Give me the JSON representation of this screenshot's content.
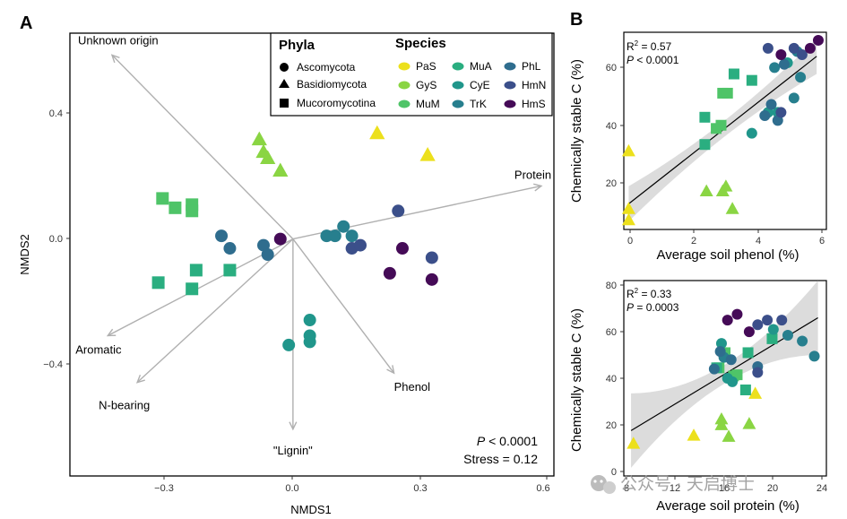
{
  "colors": {
    "PaS": "#ECE01C",
    "GyS": "#8AD543",
    "MuM": "#4FC468",
    "MuA": "#2AAE80",
    "CyE": "#20968B",
    "TrK": "#277F8E",
    "PhL": "#2F6D8E",
    "HmN": "#3B4F8A",
    "HmS": "#450B57",
    "vector": "#b0b0b0",
    "ribbon": "#d6d6d6"
  },
  "panel_a": {
    "label": "A",
    "xlabel": "NMDS1",
    "ylabel": "NMDS2",
    "xticks": [
      "−0.3",
      "0.0",
      "0.3",
      "0.6"
    ],
    "yticks": [
      "0.4",
      "0.0",
      "−0.4"
    ],
    "p_text": "< 0.0001",
    "stress_text": "Stress = 0.12"
  },
  "panel_b": {
    "label": "B",
    "top": {
      "xlabel": "Average soil phenol (%)",
      "ylabel": "Chemically stable C (%)",
      "xticks": [
        "0",
        "2",
        "4",
        "6"
      ],
      "yticks": [
        "20",
        "40",
        "60"
      ],
      "r2": "= 0.57",
      "p": "< 0.0001"
    },
    "bottom": {
      "xlabel": "Average soil protein (%)",
      "ylabel": "Chemically stable C (%)",
      "xticks": [
        "8",
        "12",
        "16",
        "20",
        "24"
      ],
      "yticks": [
        "0",
        "20",
        "40",
        "60",
        "80"
      ],
      "r2": "= 0.33",
      "p": "= 0.0003"
    }
  },
  "legend": {
    "phyla_title": "Phyla",
    "species_title": "Species",
    "phyla": [
      {
        "name": "Ascomycota",
        "shape": "circle"
      },
      {
        "name": "Basidiomycota",
        "shape": "triangle"
      },
      {
        "name": "Mucoromycotina",
        "shape": "square"
      }
    ],
    "species": [
      "PaS",
      "GyS",
      "MuM",
      "MuA",
      "CyE",
      "TrK",
      "PhL",
      "HmN",
      "HmS"
    ]
  },
  "watermark": "公众号 · 天启博士",
  "chart_data": [
    {
      "type": "scatter",
      "title": "",
      "xlabel": "NMDS1",
      "ylabel": "NMDS2",
      "xlim": [
        -0.53,
        0.62
      ],
      "ylim": [
        -0.76,
        0.66
      ],
      "grid": false,
      "legend_position": "top-right",
      "vectors": [
        {
          "label": "Unknown origin",
          "x": -0.43,
          "y": 0.59
        },
        {
          "label": "Protein",
          "x": 0.59,
          "y": 0.17
        },
        {
          "label": "Aromatic",
          "x": -0.44,
          "y": -0.31
        },
        {
          "label": "N-bearing",
          "x": -0.37,
          "y": -0.46
        },
        {
          "label": "Phenol",
          "x": 0.24,
          "y": -0.43
        },
        {
          "label": "\"Lignin\"",
          "x": 0.0,
          "y": -0.61
        }
      ],
      "points": [
        {
          "species": "PaS",
          "shape": "triangle",
          "x": 0.2,
          "y": 0.34
        },
        {
          "species": "PaS",
          "shape": "triangle",
          "x": 0.32,
          "y": 0.27
        },
        {
          "species": "GyS",
          "shape": "triangle",
          "x": -0.08,
          "y": 0.32
        },
        {
          "species": "GyS",
          "shape": "triangle",
          "x": -0.07,
          "y": 0.28
        },
        {
          "species": "GyS",
          "shape": "triangle",
          "x": -0.06,
          "y": 0.26
        },
        {
          "species": "GyS",
          "shape": "triangle",
          "x": -0.03,
          "y": 0.22
        },
        {
          "species": "MuM",
          "shape": "square",
          "x": -0.31,
          "y": 0.13
        },
        {
          "species": "MuM",
          "shape": "square",
          "x": -0.28,
          "y": 0.1
        },
        {
          "species": "MuM",
          "shape": "square",
          "x": -0.24,
          "y": 0.11
        },
        {
          "species": "MuM",
          "shape": "square",
          "x": -0.24,
          "y": 0.09
        },
        {
          "species": "MuA",
          "shape": "square",
          "x": -0.32,
          "y": -0.14
        },
        {
          "species": "MuA",
          "shape": "square",
          "x": -0.24,
          "y": -0.16
        },
        {
          "species": "MuA",
          "shape": "square",
          "x": -0.23,
          "y": -0.1
        },
        {
          "species": "MuA",
          "shape": "square",
          "x": -0.15,
          "y": -0.1
        },
        {
          "species": "CyE",
          "shape": "circle",
          "x": -0.01,
          "y": -0.34
        },
        {
          "species": "CyE",
          "shape": "circle",
          "x": 0.04,
          "y": -0.26
        },
        {
          "species": "CyE",
          "shape": "circle",
          "x": 0.04,
          "y": -0.31
        },
        {
          "species": "CyE",
          "shape": "circle",
          "x": 0.04,
          "y": -0.33
        },
        {
          "species": "TrK",
          "shape": "circle",
          "x": 0.08,
          "y": 0.01
        },
        {
          "species": "TrK",
          "shape": "circle",
          "x": 0.1,
          "y": 0.01
        },
        {
          "species": "TrK",
          "shape": "circle",
          "x": 0.12,
          "y": 0.04
        },
        {
          "species": "TrK",
          "shape": "circle",
          "x": 0.14,
          "y": 0.01
        },
        {
          "species": "PhL",
          "shape": "circle",
          "x": -0.17,
          "y": 0.01
        },
        {
          "species": "PhL",
          "shape": "circle",
          "x": -0.15,
          "y": -0.03
        },
        {
          "species": "PhL",
          "shape": "circle",
          "x": -0.07,
          "y": -0.02
        },
        {
          "species": "PhL",
          "shape": "circle",
          "x": -0.06,
          "y": -0.05
        },
        {
          "species": "HmN",
          "shape": "circle",
          "x": 0.14,
          "y": -0.03
        },
        {
          "species": "HmN",
          "shape": "circle",
          "x": 0.16,
          "y": -0.02
        },
        {
          "species": "HmN",
          "shape": "circle",
          "x": 0.25,
          "y": 0.09
        },
        {
          "species": "HmN",
          "shape": "circle",
          "x": 0.33,
          "y": -0.06
        },
        {
          "species": "HmS",
          "shape": "circle",
          "x": -0.03,
          "y": 0.0
        },
        {
          "species": "HmS",
          "shape": "circle",
          "x": 0.23,
          "y": -0.11
        },
        {
          "species": "HmS",
          "shape": "circle",
          "x": 0.26,
          "y": -0.03
        },
        {
          "species": "HmS",
          "shape": "circle",
          "x": 0.33,
          "y": -0.13
        }
      ]
    },
    {
      "type": "scatter",
      "title": "",
      "xlabel": "Average soil phenol (%)",
      "ylabel": "Chemically stable C (%)",
      "xlim": [
        -0.15,
        6.1
      ],
      "ylim": [
        8.5,
        70
      ],
      "fit_line": {
        "x": [
          0,
          5.8
        ],
        "y": [
          16.5,
          62.5
        ]
      },
      "r2": 0.57,
      "p": "< 0.0001",
      "points": [
        {
          "species": "PaS",
          "shape": "triangle",
          "x": 0.0,
          "y": 33
        },
        {
          "species": "PaS",
          "shape": "triangle",
          "x": 0.0,
          "y": 15
        },
        {
          "species": "PaS",
          "shape": "triangle",
          "x": 0.0,
          "y": 11.5
        },
        {
          "species": "GyS",
          "shape": "triangle",
          "x": 2.4,
          "y": 20.5
        },
        {
          "species": "GyS",
          "shape": "triangle",
          "x": 2.9,
          "y": 20.5
        },
        {
          "species": "GyS",
          "shape": "triangle",
          "x": 3.0,
          "y": 22
        },
        {
          "species": "GyS",
          "shape": "triangle",
          "x": 3.2,
          "y": 15
        },
        {
          "species": "MuM",
          "shape": "square",
          "x": 2.7,
          "y": 40
        },
        {
          "species": "MuM",
          "shape": "square",
          "x": 2.85,
          "y": 41
        },
        {
          "species": "MuM",
          "shape": "square",
          "x": 2.9,
          "y": 51
        },
        {
          "species": "MuM",
          "shape": "square",
          "x": 3.05,
          "y": 51
        },
        {
          "species": "MuA",
          "shape": "square",
          "x": 2.35,
          "y": 35
        },
        {
          "species": "MuA",
          "shape": "square",
          "x": 2.35,
          "y": 43.5
        },
        {
          "species": "MuA",
          "shape": "square",
          "x": 3.25,
          "y": 57
        },
        {
          "species": "MuA",
          "shape": "square",
          "x": 3.8,
          "y": 55
        },
        {
          "species": "CyE",
          "shape": "circle",
          "x": 3.8,
          "y": 38.5
        },
        {
          "species": "CyE",
          "shape": "circle",
          "x": 4.3,
          "y": 45
        },
        {
          "species": "CyE",
          "shape": "circle",
          "x": 4.6,
          "y": 45
        },
        {
          "species": "CyE",
          "shape": "circle",
          "x": 4.9,
          "y": 60.5
        },
        {
          "species": "TrK",
          "shape": "circle",
          "x": 4.5,
          "y": 59
        },
        {
          "species": "TrK",
          "shape": "circle",
          "x": 5.1,
          "y": 49.5
        },
        {
          "species": "TrK",
          "shape": "circle",
          "x": 5.3,
          "y": 56
        },
        {
          "species": "TrK",
          "shape": "circle",
          "x": 5.2,
          "y": 64
        },
        {
          "species": "PhL",
          "shape": "circle",
          "x": 4.4,
          "y": 47.5
        },
        {
          "species": "PhL",
          "shape": "circle",
          "x": 4.2,
          "y": 44
        },
        {
          "species": "PhL",
          "shape": "circle",
          "x": 4.8,
          "y": 60
        },
        {
          "species": "PhL",
          "shape": "circle",
          "x": 4.6,
          "y": 42.5
        },
        {
          "species": "HmN",
          "shape": "circle",
          "x": 4.7,
          "y": 45
        },
        {
          "species": "HmN",
          "shape": "circle",
          "x": 4.3,
          "y": 65
        },
        {
          "species": "HmN",
          "shape": "circle",
          "x": 5.1,
          "y": 65
        },
        {
          "species": "HmN",
          "shape": "circle",
          "x": 5.35,
          "y": 63
        },
        {
          "species": "HmS",
          "shape": "circle",
          "x": 4.7,
          "y": 63
        },
        {
          "species": "HmS",
          "shape": "circle",
          "x": 5.6,
          "y": 65
        },
        {
          "species": "HmS",
          "shape": "circle",
          "x": 5.85,
          "y": 67.5
        }
      ]
    },
    {
      "type": "scatter",
      "title": "",
      "xlabel": "Average soil protein (%)",
      "ylabel": "Chemically stable C (%)",
      "xlim": [
        7.4,
        24.2
      ],
      "ylim": [
        -2,
        82
      ],
      "fit_line": {
        "x": [
          8,
          23.5
        ],
        "y": [
          17.5,
          66
        ]
      },
      "r2": 0.33,
      "p": "= 0.0003",
      "points": [
        {
          "species": "PaS",
          "shape": "triangle",
          "x": 8.2,
          "y": 12
        },
        {
          "species": "PaS",
          "shape": "triangle",
          "x": 13.2,
          "y": 15.5
        },
        {
          "species": "PaS",
          "shape": "triangle",
          "x": 18.3,
          "y": 33.5
        },
        {
          "species": "GyS",
          "shape": "triangle",
          "x": 15.5,
          "y": 20
        },
        {
          "species": "GyS",
          "shape": "triangle",
          "x": 15.5,
          "y": 22.5
        },
        {
          "species": "GyS",
          "shape": "triangle",
          "x": 16.1,
          "y": 15
        },
        {
          "species": "GyS",
          "shape": "triangle",
          "x": 17.8,
          "y": 20.5
        },
        {
          "species": "MuM",
          "shape": "square",
          "x": 15.3,
          "y": 44.5
        },
        {
          "species": "MuM",
          "shape": "square",
          "x": 15.8,
          "y": 51
        },
        {
          "species": "MuM",
          "shape": "square",
          "x": 16.5,
          "y": 41
        },
        {
          "species": "MuM",
          "shape": "square",
          "x": 16.8,
          "y": 41.5
        },
        {
          "species": "MuA",
          "shape": "square",
          "x": 15.1,
          "y": 44.5
        },
        {
          "species": "MuA",
          "shape": "square",
          "x": 17.5,
          "y": 35
        },
        {
          "species": "MuA",
          "shape": "square",
          "x": 17.7,
          "y": 51
        },
        {
          "species": "MuA",
          "shape": "square",
          "x": 19.7,
          "y": 57
        },
        {
          "species": "CyE",
          "shape": "circle",
          "x": 15.5,
          "y": 55
        },
        {
          "species": "CyE",
          "shape": "circle",
          "x": 16.0,
          "y": 40
        },
        {
          "species": "CyE",
          "shape": "circle",
          "x": 16.4,
          "y": 38.5
        },
        {
          "species": "CyE",
          "shape": "circle",
          "x": 19.8,
          "y": 61
        },
        {
          "species": "TrK",
          "shape": "circle",
          "x": 21.0,
          "y": 58.5
        },
        {
          "species": "TrK",
          "shape": "circle",
          "x": 22.2,
          "y": 56
        },
        {
          "species": "TrK",
          "shape": "circle",
          "x": 23.2,
          "y": 49.5
        },
        {
          "species": "TrK",
          "shape": "circle",
          "x": 15.7,
          "y": 49
        },
        {
          "species": "PhL",
          "shape": "circle",
          "x": 14.9,
          "y": 44
        },
        {
          "species": "PhL",
          "shape": "circle",
          "x": 15.4,
          "y": 51.5
        },
        {
          "species": "PhL",
          "shape": "circle",
          "x": 16.3,
          "y": 48
        },
        {
          "species": "PhL",
          "shape": "circle",
          "x": 18.5,
          "y": 45
        },
        {
          "species": "HmN",
          "shape": "circle",
          "x": 18.5,
          "y": 42.5
        },
        {
          "species": "HmN",
          "shape": "circle",
          "x": 18.5,
          "y": 63
        },
        {
          "species": "HmN",
          "shape": "circle",
          "x": 19.3,
          "y": 65
        },
        {
          "species": "HmN",
          "shape": "circle",
          "x": 20.5,
          "y": 65
        },
        {
          "species": "HmS",
          "shape": "circle",
          "x": 16.0,
          "y": 65
        },
        {
          "species": "HmS",
          "shape": "circle",
          "x": 16.8,
          "y": 67.5
        },
        {
          "species": "HmS",
          "shape": "circle",
          "x": 17.8,
          "y": 60
        }
      ]
    }
  ]
}
